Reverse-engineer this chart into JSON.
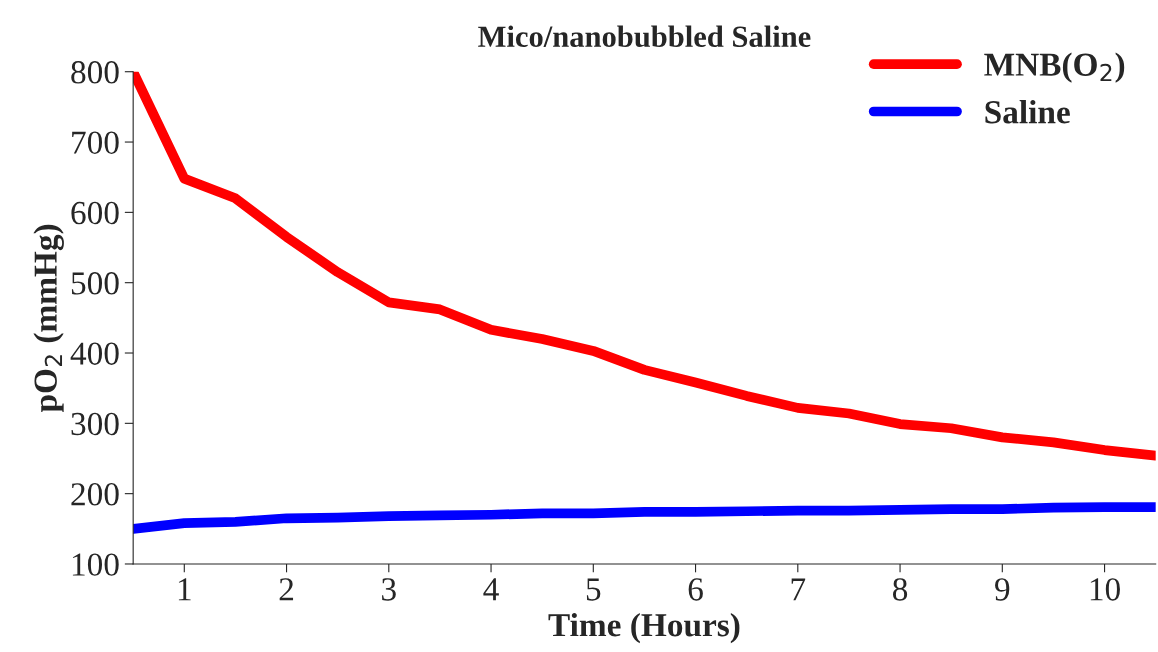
{
  "chart_data": {
    "type": "line",
    "title": "Mico/nanobubbled Saline",
    "xlabel": "Time (Hours)",
    "ylabel": "pO$_{2}$ (mmHg)",
    "x": [
      0.5,
      1,
      1.5,
      2,
      2.5,
      3,
      3.5,
      4,
      4.5,
      5,
      5.5,
      6,
      6.5,
      7,
      7.5,
      8,
      8.5,
      9,
      9.5,
      10,
      10.5
    ],
    "series": [
      {
        "name": "MNB(O$_{2}$)",
        "color": "#ff0000",
        "values": [
          800,
          648,
          620,
          565,
          515,
          472,
          462,
          433,
          420,
          403,
          376,
          358,
          339,
          322,
          314,
          299,
          293,
          280,
          273,
          262,
          254
        ]
      },
      {
        "name": "Saline",
        "color": "#0000ff",
        "values": [
          150,
          158,
          160,
          165,
          166,
          168,
          169,
          170,
          172,
          172,
          174,
          174,
          175,
          176,
          176,
          177,
          178,
          178,
          180,
          181,
          181
        ]
      }
    ],
    "xlim": [
      0.5,
      10.5
    ],
    "xticks": [
      1,
      2,
      3,
      4,
      5,
      6,
      7,
      8,
      9,
      10
    ],
    "ylim": [
      100,
      800
    ],
    "yticks": [
      100,
      200,
      300,
      400,
      500,
      600,
      700,
      800
    ],
    "grid": false,
    "legend": "top right",
    "marker": "none",
    "line_style": "solid"
  }
}
